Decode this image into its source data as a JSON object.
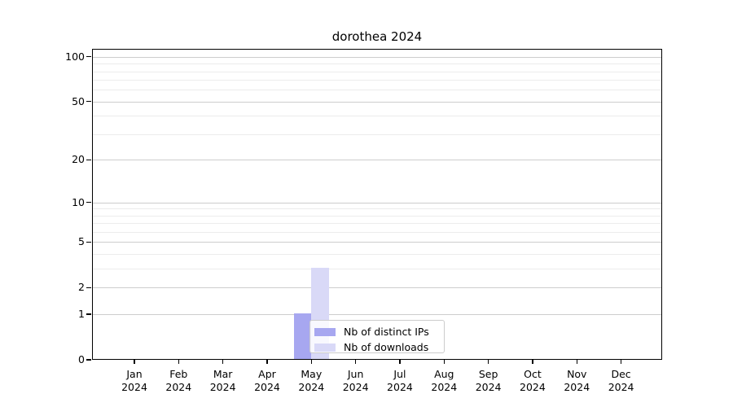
{
  "chart_data": {
    "type": "bar",
    "title": "dorothea 2024",
    "x_tick_months": [
      "Jan",
      "Feb",
      "Mar",
      "Apr",
      "May",
      "Jun",
      "Jul",
      "Aug",
      "Sep",
      "Oct",
      "Nov",
      "Dec"
    ],
    "x_tick_year": "2024",
    "series": [
      {
        "name": "Nb of distinct IPs",
        "color": "#a7a7f0",
        "values": [
          0,
          0,
          0,
          0,
          1,
          0,
          0,
          0,
          0,
          0,
          0,
          0
        ]
      },
      {
        "name": "Nb of downloads",
        "color": "#d9d9f7",
        "values": [
          0,
          0,
          0,
          0,
          3,
          0,
          0,
          0,
          0,
          0,
          0,
          0
        ]
      }
    ],
    "y_axis": {
      "scale": "log1p",
      "ticks": [
        100,
        50,
        20,
        10,
        5,
        2,
        1,
        0
      ],
      "minor_gridlines": [
        3,
        4,
        6,
        7,
        8,
        9,
        30,
        40,
        60,
        70,
        80,
        90
      ],
      "ylim": [
        0,
        113
      ]
    },
    "legend_position": "inside-lower-center",
    "grid": "horizontal major+minor"
  },
  "colors": {
    "major_grid": "#cdcdcd",
    "minor_grid": "#ececec",
    "spine": "#000000",
    "legend_border": "#cccccc",
    "text": "#000000"
  }
}
